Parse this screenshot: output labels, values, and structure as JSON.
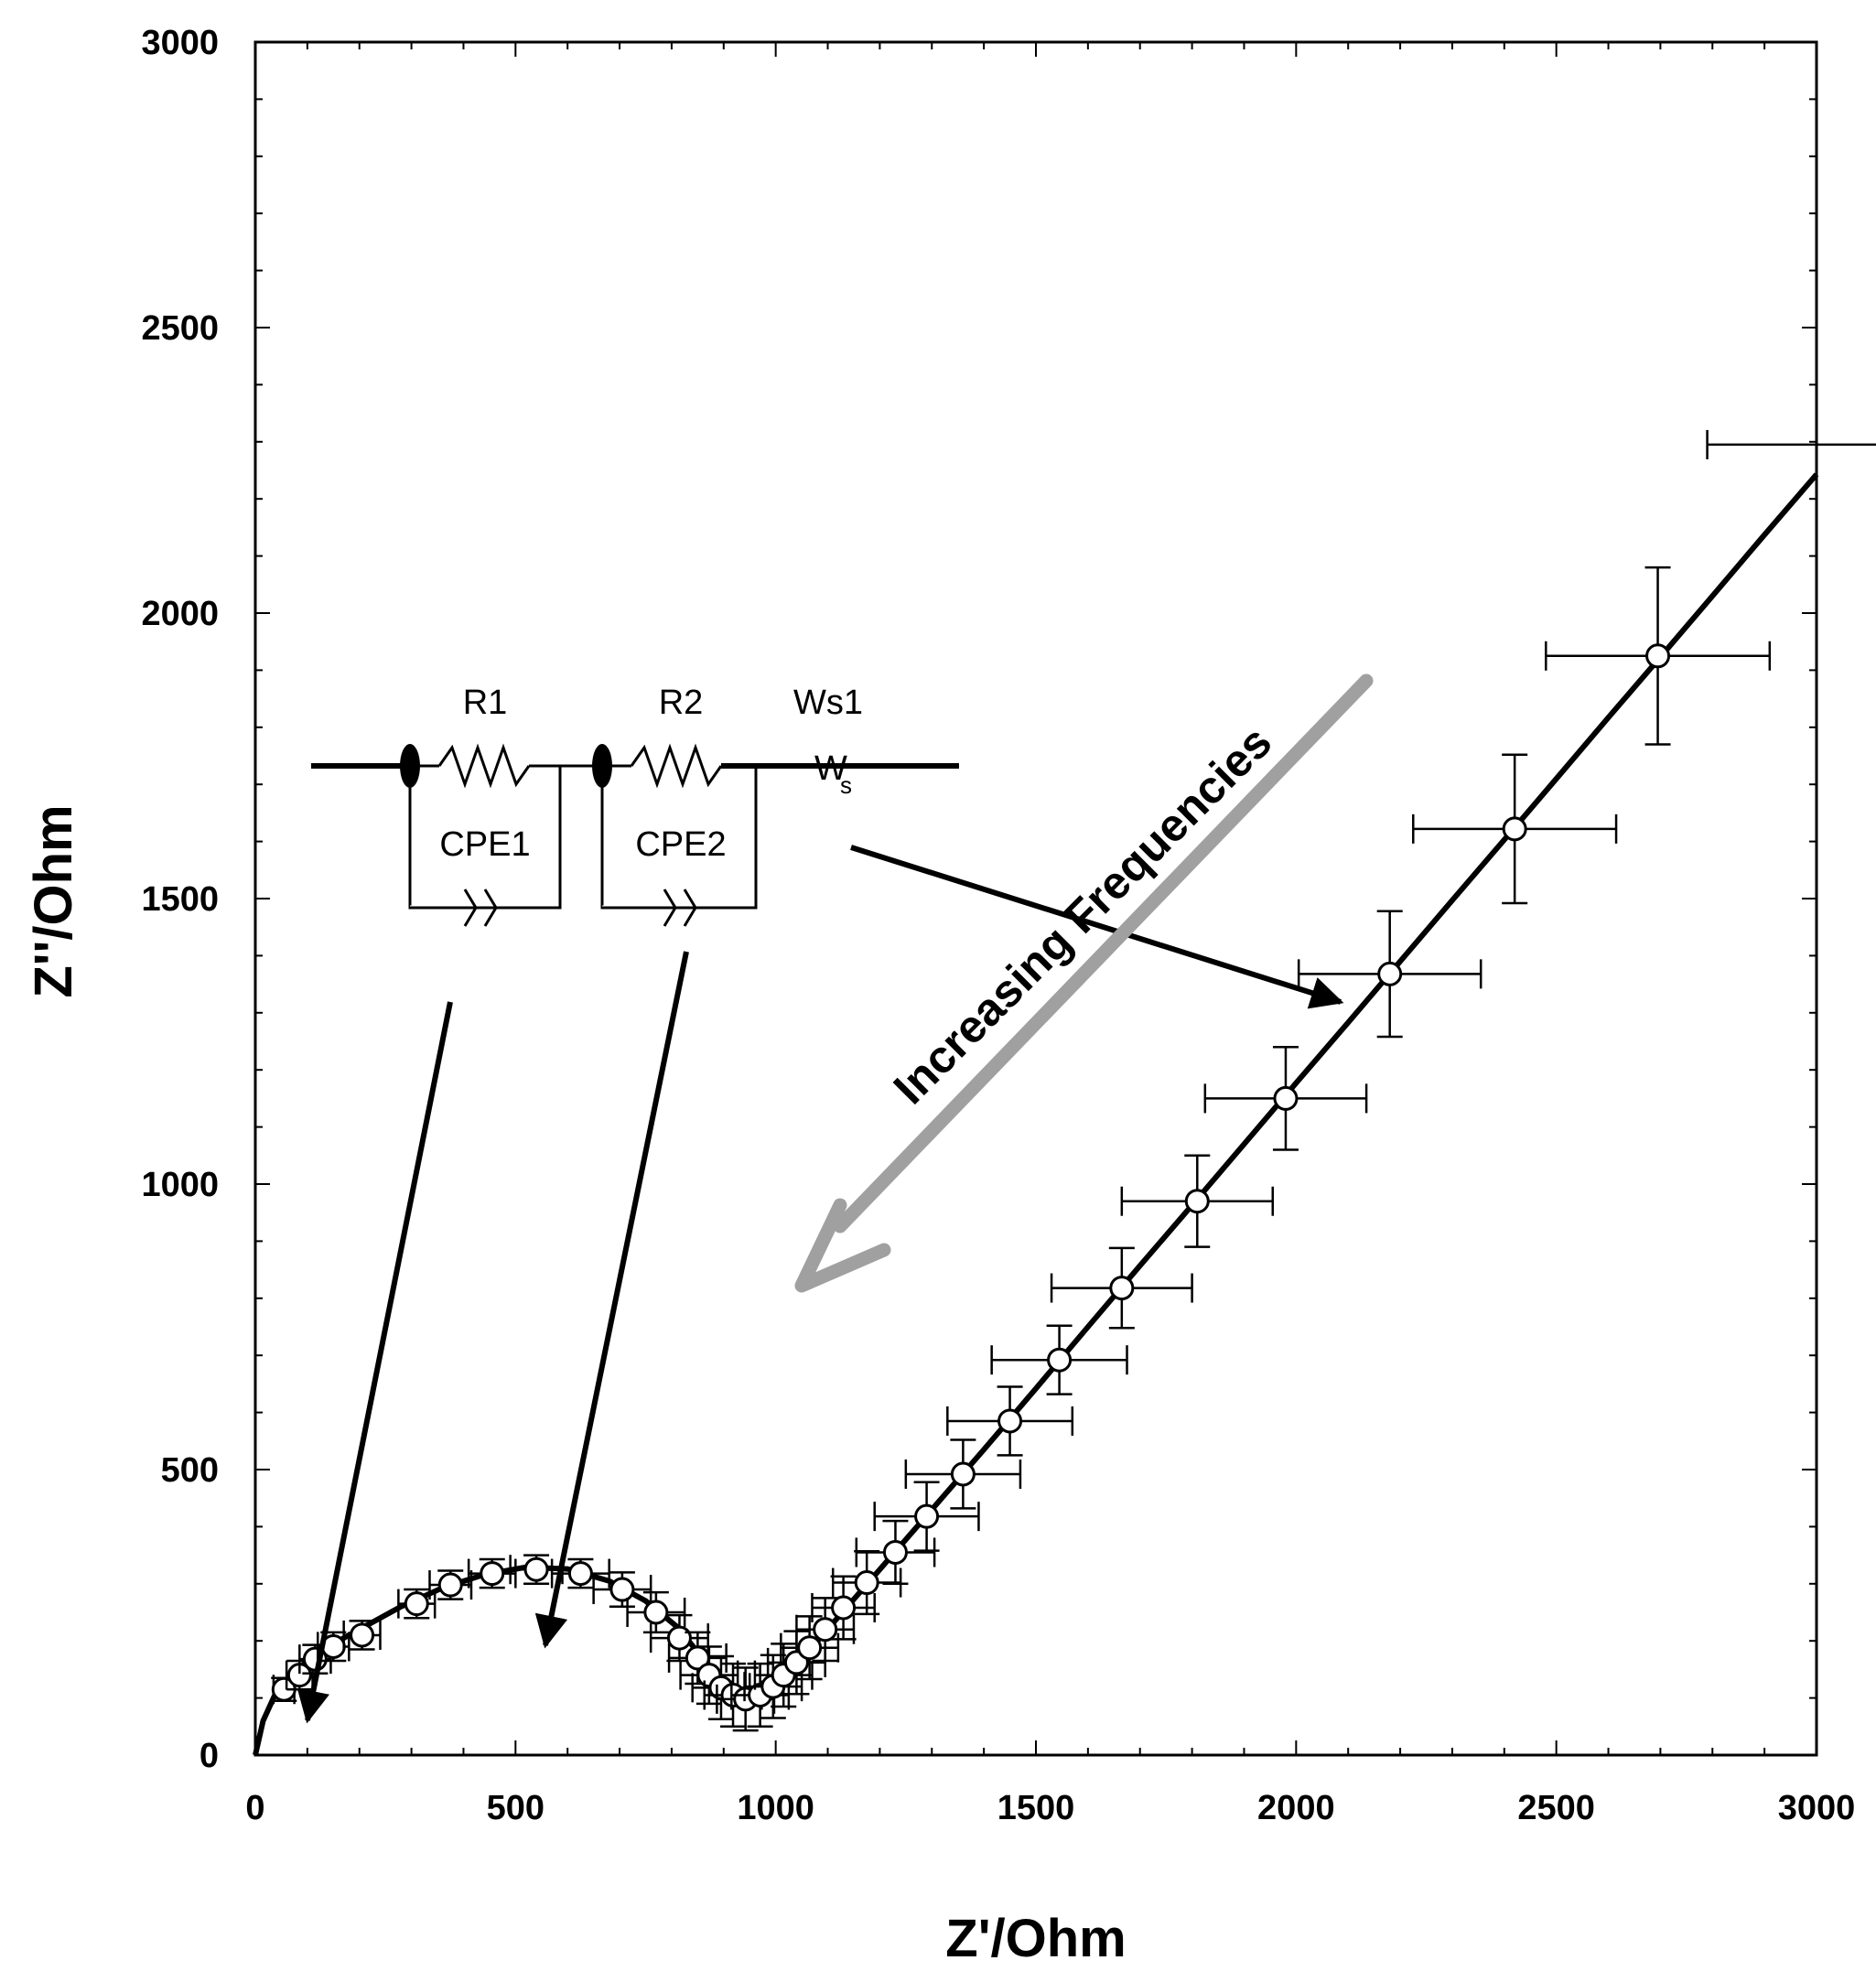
{
  "chart_data": {
    "type": "scatter",
    "title": "",
    "xlabel": "Z'/Ohm",
    "ylabel": "Z''/Ohm",
    "xlim": [
      0,
      3000
    ],
    "ylim": [
      0,
      3000
    ],
    "xticks": [
      "0",
      "500",
      "1000",
      "1500",
      "2000",
      "2500",
      "3000"
    ],
    "yticks": [
      "0",
      "500",
      "1000",
      "1500",
      "2000",
      "2500",
      "3000"
    ],
    "grid": false,
    "series": [
      {
        "kind": "measured",
        "marker": "open-circle",
        "points": [
          {
            "x": 55,
            "y": 115,
            "xerr": 20,
            "yerr": 20
          },
          {
            "x": 85,
            "y": 140,
            "xerr": 25,
            "yerr": 25
          },
          {
            "x": 115,
            "y": 168,
            "xerr": 30,
            "yerr": 25
          },
          {
            "x": 150,
            "y": 190,
            "xerr": 30,
            "yerr": 25
          },
          {
            "x": 205,
            "y": 210,
            "xerr": 35,
            "yerr": 25
          },
          {
            "x": 310,
            "y": 265,
            "xerr": 35,
            "yerr": 25
          },
          {
            "x": 375,
            "y": 298,
            "xerr": 40,
            "yerr": 25
          },
          {
            "x": 455,
            "y": 318,
            "xerr": 45,
            "yerr": 25
          },
          {
            "x": 540,
            "y": 325,
            "xerr": 50,
            "yerr": 25
          },
          {
            "x": 625,
            "y": 318,
            "xerr": 55,
            "yerr": 25
          },
          {
            "x": 705,
            "y": 290,
            "xerr": 55,
            "yerr": 30
          },
          {
            "x": 770,
            "y": 250,
            "xerr": 55,
            "yerr": 35
          },
          {
            "x": 815,
            "y": 205,
            "xerr": 55,
            "yerr": 40
          },
          {
            "x": 850,
            "y": 170,
            "xerr": 55,
            "yerr": 45
          },
          {
            "x": 872,
            "y": 140,
            "xerr": 55,
            "yerr": 50
          },
          {
            "x": 895,
            "y": 118,
            "xerr": 55,
            "yerr": 55
          },
          {
            "x": 918,
            "y": 105,
            "xerr": 55,
            "yerr": 55
          },
          {
            "x": 942,
            "y": 98,
            "xerr": 55,
            "yerr": 55
          },
          {
            "x": 970,
            "y": 105,
            "xerr": 55,
            "yerr": 55
          },
          {
            "x": 995,
            "y": 120,
            "xerr": 55,
            "yerr": 55
          },
          {
            "x": 1015,
            "y": 140,
            "xerr": 55,
            "yerr": 55
          },
          {
            "x": 1040,
            "y": 162,
            "xerr": 55,
            "yerr": 55
          },
          {
            "x": 1065,
            "y": 188,
            "xerr": 55,
            "yerr": 55
          },
          {
            "x": 1095,
            "y": 220,
            "xerr": 55,
            "yerr": 55
          },
          {
            "x": 1130,
            "y": 258,
            "xerr": 60,
            "yerr": 55
          },
          {
            "x": 1175,
            "y": 302,
            "xerr": 65,
            "yerr": 55
          },
          {
            "x": 1230,
            "y": 355,
            "xerr": 75,
            "yerr": 55
          },
          {
            "x": 1290,
            "y": 418,
            "xerr": 100,
            "yerr": 60
          },
          {
            "x": 1360,
            "y": 492,
            "xerr": 110,
            "yerr": 60
          },
          {
            "x": 1450,
            "y": 585,
            "xerr": 120,
            "yerr": 60
          },
          {
            "x": 1545,
            "y": 692,
            "xerr": 130,
            "yerr": 60
          },
          {
            "x": 1665,
            "y": 818,
            "xerr": 135,
            "yerr": 70
          },
          {
            "x": 1810,
            "y": 970,
            "xerr": 145,
            "yerr": 80
          },
          {
            "x": 1980,
            "y": 1150,
            "xerr": 155,
            "yerr": 90
          },
          {
            "x": 2180,
            "y": 1368,
            "xerr": 175,
            "yerr": 110
          },
          {
            "x": 2420,
            "y": 1622,
            "xerr": 195,
            "yerr": 130
          },
          {
            "x": 2695,
            "y": 1925,
            "xerr": 215,
            "yerr": 155
          }
        ],
        "extra_error_bars": [
          {
            "x": 2995,
            "y": 2295,
            "xerr": 205,
            "yerr": 0
          }
        ]
      },
      {
        "kind": "fit",
        "style": "thick-line",
        "points": [
          [
            0,
            0
          ],
          [
            15,
            60
          ],
          [
            40,
            110
          ],
          [
            80,
            150
          ],
          [
            130,
            185
          ],
          [
            200,
            220
          ],
          [
            280,
            260
          ],
          [
            360,
            293
          ],
          [
            440,
            316
          ],
          [
            520,
            329
          ],
          [
            600,
            326
          ],
          [
            680,
            305
          ],
          [
            750,
            270
          ],
          [
            810,
            225
          ],
          [
            855,
            175
          ],
          [
            885,
            135
          ],
          [
            910,
            110
          ],
          [
            935,
            96
          ],
          [
            960,
            98
          ],
          [
            985,
            110
          ],
          [
            1010,
            132
          ],
          [
            1040,
            160
          ],
          [
            1080,
            200
          ],
          [
            1130,
            252
          ],
          [
            1200,
            325
          ],
          [
            1300,
            430
          ],
          [
            1400,
            535
          ],
          [
            1500,
            642
          ],
          [
            1600,
            750
          ],
          [
            1700,
            857
          ],
          [
            1800,
            963
          ],
          [
            1900,
            1070
          ],
          [
            2000,
            1177
          ],
          [
            2100,
            1283
          ],
          [
            2200,
            1390
          ],
          [
            2300,
            1497
          ],
          [
            2400,
            1603
          ],
          [
            2500,
            1710
          ],
          [
            2600,
            1817
          ],
          [
            2700,
            1923
          ],
          [
            2800,
            2030
          ],
          [
            2900,
            2137
          ],
          [
            3000,
            2243
          ]
        ]
      }
    ],
    "annotations": {
      "frequency_text": "Increasing Frequencies",
      "circuit": {
        "r1": "R1",
        "r2": "R2",
        "ws1": "Ws1",
        "ws_symbol_main": "W",
        "ws_symbol_sub": "s",
        "cpe1": "CPE1",
        "cpe2": "CPE2"
      },
      "arrow_color": "#000000",
      "frequency_arrow_color": "#a0a0a0"
    }
  }
}
